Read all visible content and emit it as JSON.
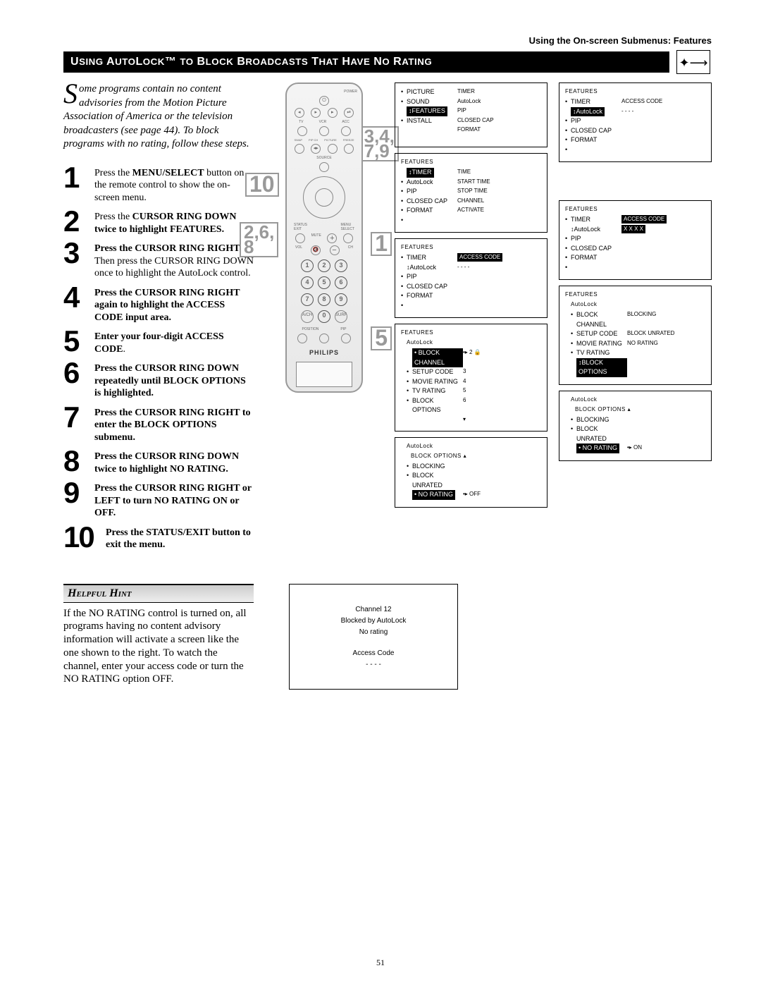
{
  "top_label": "Using the On-screen Submenus: Features",
  "title_line": "Using AutoLock™ to Block Broadcasts That Have No Rating",
  "intro": "Some programs contain no content advisories from the Motion Picture Association of America or the television broadcasters (see page 44). To block programs with no rating, follow these steps.",
  "intro_dropcap": "S",
  "intro_rest": "ome programs contain no content advisories from the Motion Picture Association of America or the television broadcasters (see page 44). To block programs with no rating, follow these steps.",
  "steps": [
    {
      "n": "1",
      "html": "Press the <b>MENU/SELECT</b> button on the remote control to show the on-screen menu."
    },
    {
      "n": "2",
      "html": "Press the <b>CURSOR RING DOWN twice to highlight FEATURES.</b>"
    },
    {
      "n": "3",
      "html": "<b>Press the CURSOR RING RIGHT</b>. Then press the CURSOR RING DOWN once to highlight the AutoLock control."
    },
    {
      "n": "4",
      "html": "<b>Press the CURSOR RING RIGHT again to highlight the ACCESS CODE input area.</b>"
    },
    {
      "n": "5",
      "html": "<b>Enter your four-digit ACCESS CODE</b>."
    },
    {
      "n": "6",
      "html": "<b>Press the CURSOR RING DOWN repeatedly until BLOCK OPTIONS is highlighted.</b>"
    },
    {
      "n": "7",
      "html": "<b>Press the CURSOR RING RIGHT to enter the BLOCK OPTIONS submenu.</b>"
    },
    {
      "n": "8",
      "html": "<b>Press the CURSOR RING DOWN twice to highlight NO RATING.</b>"
    },
    {
      "n": "9",
      "html": "<b>Press the CURSOR RING RIGHT or LEFT to turn NO RATING ON or OFF.</b>"
    },
    {
      "n": "10",
      "html": "<b>Press the STATUS/EXIT button to exit the menu.</b>"
    }
  ],
  "callouts": {
    "c1": "3,4,\n7,9",
    "c2": "10",
    "c3": "2,6,\n8",
    "c4": "1",
    "c5": "5"
  },
  "remote_brand": "PHILIPS",
  "screens_left": [
    {
      "type": "main",
      "rows": [
        {
          "bullet": "•",
          "l": "PICTURE",
          "r": "TIMER"
        },
        {
          "bullet": "•",
          "l": "SOUND",
          "r": "AutoLock"
        },
        {
          "bullet": "",
          "l_hl": "↕FEATURES",
          "r": "PIP"
        },
        {
          "bullet": "•",
          "l": "INSTALL",
          "r": "CLOSED CAP"
        },
        {
          "bullet": "",
          "l": "",
          "r": "FORMAT"
        }
      ]
    },
    {
      "hdr": "FEATURES",
      "rows": [
        {
          "bullet": "",
          "l_hl": "↕TIMER",
          "r": "TIME"
        },
        {
          "bullet": "•",
          "l": "AutoLock",
          "r": "START TIME"
        },
        {
          "bullet": "•",
          "l": "PIP",
          "r": "STOP TIME"
        },
        {
          "bullet": "•",
          "l": "CLOSED CAP",
          "r": "CHANNEL"
        },
        {
          "bullet": "•",
          "l": "FORMAT",
          "r": "ACTIVATE"
        },
        {
          "bullet": "•",
          "l": "",
          "r": ""
        }
      ]
    },
    {
      "hdr": "FEATURES",
      "rows": [
        {
          "bullet": "•",
          "l": "TIMER",
          "r_hl": "ACCESS CODE"
        },
        {
          "bullet": "",
          "l_arrow": "↕AutoLock",
          "r": "- - - -"
        },
        {
          "bullet": "•",
          "l": "PIP",
          "r": ""
        },
        {
          "bullet": "•",
          "l": "CLOSED CAP",
          "r": ""
        },
        {
          "bullet": "•",
          "l": "FORMAT",
          "r": ""
        },
        {
          "bullet": "•",
          "l": "",
          "r": ""
        }
      ]
    },
    {
      "hdr": "FEATURES",
      "sub": "AutoLock",
      "rows": [
        {
          "bullet": "",
          "l_hl": "• BLOCK CHANNEL",
          "r": "•▸ 2    🔒"
        },
        {
          "bullet": "•",
          "l": "SETUP CODE",
          "r": "3"
        },
        {
          "bullet": "•",
          "l": "MOVIE RATING",
          "r": "4"
        },
        {
          "bullet": "•",
          "l": "TV RATING",
          "r": "5"
        },
        {
          "bullet": "•",
          "l": "BLOCK OPTIONS",
          "r": "6"
        },
        {
          "bullet": "",
          "l": "",
          "r": "▾"
        }
      ],
      "tall": true
    },
    {
      "sub": "AutoLock",
      "sub2": "BLOCK OPTIONS      ▴",
      "rows": [
        {
          "bullet": "•",
          "l": "BLOCKING",
          "r": ""
        },
        {
          "bullet": "•",
          "l": "BLOCK UNRATED",
          "r": ""
        },
        {
          "bullet": "",
          "l_hl": "• NO RATING",
          "r": "•▸ OFF"
        }
      ]
    }
  ],
  "screens_right": [
    {
      "hdr": "FEATURES",
      "rows": [
        {
          "bullet": "•",
          "l": "TIMER",
          "r": "ACCESS CODE"
        },
        {
          "bullet": "",
          "l_hl": "↕AutoLock",
          "r": "- - - -"
        },
        {
          "bullet": "•",
          "l": "PIP",
          "r": ""
        },
        {
          "bullet": "•",
          "l": "CLOSED CAP",
          "r": ""
        },
        {
          "bullet": "•",
          "l": "FORMAT",
          "r": ""
        },
        {
          "bullet": "•",
          "l": "",
          "r": ""
        }
      ]
    },
    {
      "hdr": "FEATURES",
      "rows": [
        {
          "bullet": "•",
          "l": "TIMER",
          "r_hl": "ACCESS CODE"
        },
        {
          "bullet": "",
          "l_arrow": "↕AutoLock",
          "r_hl": "X X X X"
        },
        {
          "bullet": "•",
          "l": "PIP",
          "r": ""
        },
        {
          "bullet": "•",
          "l": "CLOSED CAP",
          "r": ""
        },
        {
          "bullet": "•",
          "l": "FORMAT",
          "r": ""
        },
        {
          "bullet": "•",
          "l": "",
          "r": ""
        }
      ],
      "offset": true
    },
    {
      "hdr": "FEATURES",
      "sub": "AutoLock",
      "rows": [
        {
          "bullet": "•",
          "l": "BLOCK CHANNEL",
          "r": "BLOCKING"
        },
        {
          "bullet": "•",
          "l": "SETUP CODE",
          "r": "BLOCK UNRATED"
        },
        {
          "bullet": "•",
          "l": "MOVIE RATING",
          "r": "NO RATING"
        },
        {
          "bullet": "•",
          "l": "TV RATING",
          "r": ""
        },
        {
          "bullet": "",
          "l_hl": "↕BLOCK OPTIONS",
          "r": ""
        }
      ],
      "tall": true
    },
    {
      "sub": "AutoLock",
      "sub2": "BLOCK OPTIONS      ▴",
      "rows": [
        {
          "bullet": "•",
          "l": "BLOCKING",
          "r": ""
        },
        {
          "bullet": "•",
          "l": "BLOCK UNRATED",
          "r": ""
        },
        {
          "bullet": "",
          "l_hl": "• NO RATING",
          "r": "•▸ ON"
        }
      ]
    }
  ],
  "hint_title": "Helpful Hint",
  "hint_text": "If the NO RATING control is turned on, all programs having no content advisory information will activate a screen like the one shown to the right. To watch the channel, enter your access code or turn the NO RATING option OFF.",
  "hint_screen": {
    "l1": "Channel 12",
    "l2": "Blocked by AutoLock",
    "l3": "No rating",
    "l4": "Access Code",
    "l5": "- - - -"
  },
  "page_number": "51",
  "colors": {
    "callout": "#999999",
    "black": "#000000"
  }
}
